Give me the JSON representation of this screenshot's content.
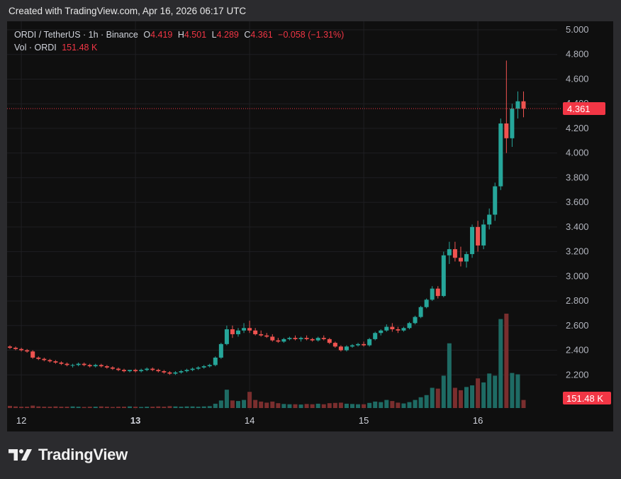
{
  "header": {
    "created_text": "Created with TradingView.com, Apr 16, 2026 06:17 UTC"
  },
  "legend": {
    "symbol": "ORDI / TetherUS · 1h · Binance",
    "o_label": "O",
    "o_value": "4.419",
    "h_label": "H",
    "h_value": "4.501",
    "l_label": "L",
    "l_value": "4.289",
    "c_label": "C",
    "c_value": "4.361",
    "change": "−0.058 (−1.31%)",
    "vol_label": "Vol · ORDI",
    "vol_value": "151.48 K"
  },
  "footer": {
    "brand": "TradingView",
    "logo_icon": "tradingview-logo-icon"
  },
  "colors": {
    "up": "#26a69a",
    "down": "#ef5350",
    "vol_up": "#1e6b64",
    "vol_down": "#7a2e2e",
    "price_tag": "#f23645"
  },
  "chart_data": {
    "type": "candlestick",
    "symbol": "ORDI / TetherUS",
    "interval": "1h",
    "exchange": "Binance",
    "ylim": [
      2.0,
      5.0
    ],
    "y_ticks": [
      "5.000",
      "4.800",
      "4.600",
      "4.400",
      "4.200",
      "4.000",
      "3.800",
      "3.600",
      "3.400",
      "3.200",
      "3.000",
      "2.800",
      "2.600",
      "2.400",
      "2.200"
    ],
    "x_ticks": [
      {
        "label": "12",
        "index": 2
      },
      {
        "label": "13",
        "index": 22
      },
      {
        "label": "14",
        "index": 42
      },
      {
        "label": "15",
        "index": 62
      },
      {
        "label": "16",
        "index": 82
      }
    ],
    "bold_x_ticks": [
      "13"
    ],
    "last_price": {
      "value": 4.361,
      "label": "4.361"
    },
    "last_volume": {
      "label": "151.48 K"
    },
    "candles": [
      [
        2.43,
        2.44,
        2.41,
        2.42,
        0.8
      ],
      [
        2.42,
        2.43,
        2.4,
        2.41,
        0.6
      ],
      [
        2.41,
        2.42,
        2.39,
        2.4,
        0.5
      ],
      [
        2.4,
        2.41,
        2.38,
        2.39,
        0.5
      ],
      [
        2.39,
        2.4,
        2.33,
        2.34,
        0.9
      ],
      [
        2.34,
        2.35,
        2.32,
        2.33,
        0.6
      ],
      [
        2.33,
        2.34,
        2.31,
        2.32,
        0.5
      ],
      [
        2.32,
        2.33,
        2.3,
        2.31,
        0.5
      ],
      [
        2.31,
        2.32,
        2.29,
        2.3,
        0.6
      ],
      [
        2.3,
        2.31,
        2.28,
        2.29,
        0.5
      ],
      [
        2.29,
        2.3,
        2.27,
        2.28,
        0.5
      ],
      [
        2.28,
        2.29,
        2.26,
        2.28,
        0.6
      ],
      [
        2.28,
        2.3,
        2.27,
        2.29,
        0.5
      ],
      [
        2.29,
        2.3,
        2.27,
        2.28,
        0.4
      ],
      [
        2.28,
        2.29,
        2.26,
        2.27,
        0.5
      ],
      [
        2.27,
        2.29,
        2.26,
        2.28,
        0.5
      ],
      [
        2.28,
        2.29,
        2.26,
        2.27,
        0.6
      ],
      [
        2.27,
        2.28,
        2.25,
        2.26,
        0.5
      ],
      [
        2.26,
        2.27,
        2.24,
        2.25,
        0.4
      ],
      [
        2.25,
        2.26,
        2.23,
        2.24,
        0.5
      ],
      [
        2.24,
        2.25,
        2.22,
        2.23,
        0.5
      ],
      [
        2.23,
        2.24,
        2.22,
        2.24,
        0.6
      ],
      [
        2.24,
        2.25,
        2.22,
        2.23,
        0.5
      ],
      [
        2.23,
        2.25,
        2.22,
        2.24,
        0.4
      ],
      [
        2.24,
        2.26,
        2.23,
        2.25,
        0.5
      ],
      [
        2.25,
        2.26,
        2.23,
        2.24,
        0.5
      ],
      [
        2.24,
        2.25,
        2.22,
        2.23,
        0.6
      ],
      [
        2.23,
        2.24,
        2.21,
        2.22,
        0.5
      ],
      [
        2.22,
        2.23,
        2.2,
        2.21,
        0.7
      ],
      [
        2.21,
        2.23,
        2.2,
        2.22,
        0.6
      ],
      [
        2.22,
        2.24,
        2.21,
        2.23,
        0.5
      ],
      [
        2.23,
        2.25,
        2.22,
        2.24,
        0.6
      ],
      [
        2.24,
        2.26,
        2.23,
        2.25,
        0.6
      ],
      [
        2.25,
        2.27,
        2.24,
        2.26,
        0.5
      ],
      [
        2.26,
        2.28,
        2.25,
        2.27,
        0.6
      ],
      [
        2.27,
        2.29,
        2.26,
        2.28,
        0.7
      ],
      [
        2.28,
        2.35,
        2.27,
        2.34,
        1.6
      ],
      [
        2.34,
        2.46,
        2.33,
        2.45,
        2.8
      ],
      [
        2.45,
        2.6,
        2.44,
        2.57,
        6.8
      ],
      [
        2.57,
        2.6,
        2.5,
        2.53,
        2.8
      ],
      [
        2.53,
        2.58,
        2.51,
        2.56,
        2.6
      ],
      [
        2.56,
        2.62,
        2.54,
        2.58,
        3.0
      ],
      [
        2.58,
        2.64,
        2.54,
        2.56,
        6.0
      ],
      [
        2.56,
        2.58,
        2.52,
        2.53,
        3.0
      ],
      [
        2.53,
        2.56,
        2.51,
        2.52,
        2.4
      ],
      [
        2.52,
        2.54,
        2.5,
        2.51,
        2.0
      ],
      [
        2.51,
        2.53,
        2.47,
        2.48,
        2.4
      ],
      [
        2.48,
        2.5,
        2.46,
        2.47,
        1.8
      ],
      [
        2.47,
        2.5,
        2.46,
        2.49,
        1.5
      ],
      [
        2.49,
        2.51,
        2.48,
        2.5,
        1.4
      ],
      [
        2.5,
        2.52,
        2.48,
        2.49,
        1.4
      ],
      [
        2.49,
        2.51,
        2.47,
        2.5,
        1.3
      ],
      [
        2.5,
        2.52,
        2.48,
        2.49,
        1.5
      ],
      [
        2.49,
        2.5,
        2.47,
        2.48,
        1.4
      ],
      [
        2.48,
        2.51,
        2.47,
        2.5,
        1.6
      ],
      [
        2.5,
        2.52,
        2.48,
        2.49,
        1.4
      ],
      [
        2.49,
        2.5,
        2.45,
        2.46,
        1.8
      ],
      [
        2.46,
        2.47,
        2.42,
        2.43,
        1.9
      ],
      [
        2.43,
        2.44,
        2.39,
        2.4,
        2.0
      ],
      [
        2.4,
        2.44,
        2.39,
        2.43,
        1.6
      ],
      [
        2.43,
        2.45,
        2.42,
        2.44,
        1.5
      ],
      [
        2.44,
        2.46,
        2.43,
        2.45,
        1.4
      ],
      [
        2.45,
        2.47,
        2.43,
        2.44,
        1.4
      ],
      [
        2.44,
        2.5,
        2.43,
        2.49,
        1.9
      ],
      [
        2.49,
        2.55,
        2.48,
        2.54,
        2.4
      ],
      [
        2.54,
        2.57,
        2.52,
        2.56,
        2.2
      ],
      [
        2.56,
        2.61,
        2.55,
        2.59,
        3.0
      ],
      [
        2.59,
        2.62,
        2.55,
        2.57,
        2.6
      ],
      [
        2.57,
        2.59,
        2.54,
        2.56,
        2.0
      ],
      [
        2.56,
        2.59,
        2.55,
        2.58,
        1.7
      ],
      [
        2.58,
        2.63,
        2.57,
        2.62,
        2.2
      ],
      [
        2.62,
        2.68,
        2.61,
        2.67,
        3.0
      ],
      [
        2.67,
        2.76,
        2.66,
        2.75,
        4.0
      ],
      [
        2.75,
        2.82,
        2.74,
        2.81,
        4.8
      ],
      [
        2.81,
        2.92,
        2.8,
        2.9,
        7.5
      ],
      [
        2.9,
        2.92,
        2.82,
        2.84,
        7.2
      ],
      [
        2.84,
        3.2,
        2.83,
        3.17,
        12.0
      ],
      [
        3.17,
        3.28,
        3.1,
        3.22,
        24.0
      ],
      [
        3.22,
        3.28,
        3.12,
        3.15,
        7.5
      ],
      [
        3.15,
        3.24,
        3.08,
        3.12,
        6.6
      ],
      [
        3.12,
        3.2,
        3.07,
        3.18,
        7.8
      ],
      [
        3.18,
        3.42,
        3.15,
        3.4,
        8.4
      ],
      [
        3.4,
        3.45,
        3.2,
        3.25,
        11.0
      ],
      [
        3.25,
        3.46,
        3.22,
        3.42,
        9.5
      ],
      [
        3.42,
        3.55,
        3.38,
        3.5,
        12.8
      ],
      [
        3.5,
        3.76,
        3.45,
        3.73,
        12.0
      ],
      [
        3.73,
        4.28,
        3.7,
        4.24,
        33.0
      ],
      [
        4.24,
        4.75,
        4.0,
        4.12,
        35.0
      ],
      [
        4.12,
        4.4,
        4.05,
        4.36,
        13.0
      ],
      [
        4.36,
        4.5,
        4.28,
        4.42,
        12.5
      ],
      [
        4.42,
        4.5,
        4.29,
        4.36,
        3.0
      ]
    ]
  }
}
